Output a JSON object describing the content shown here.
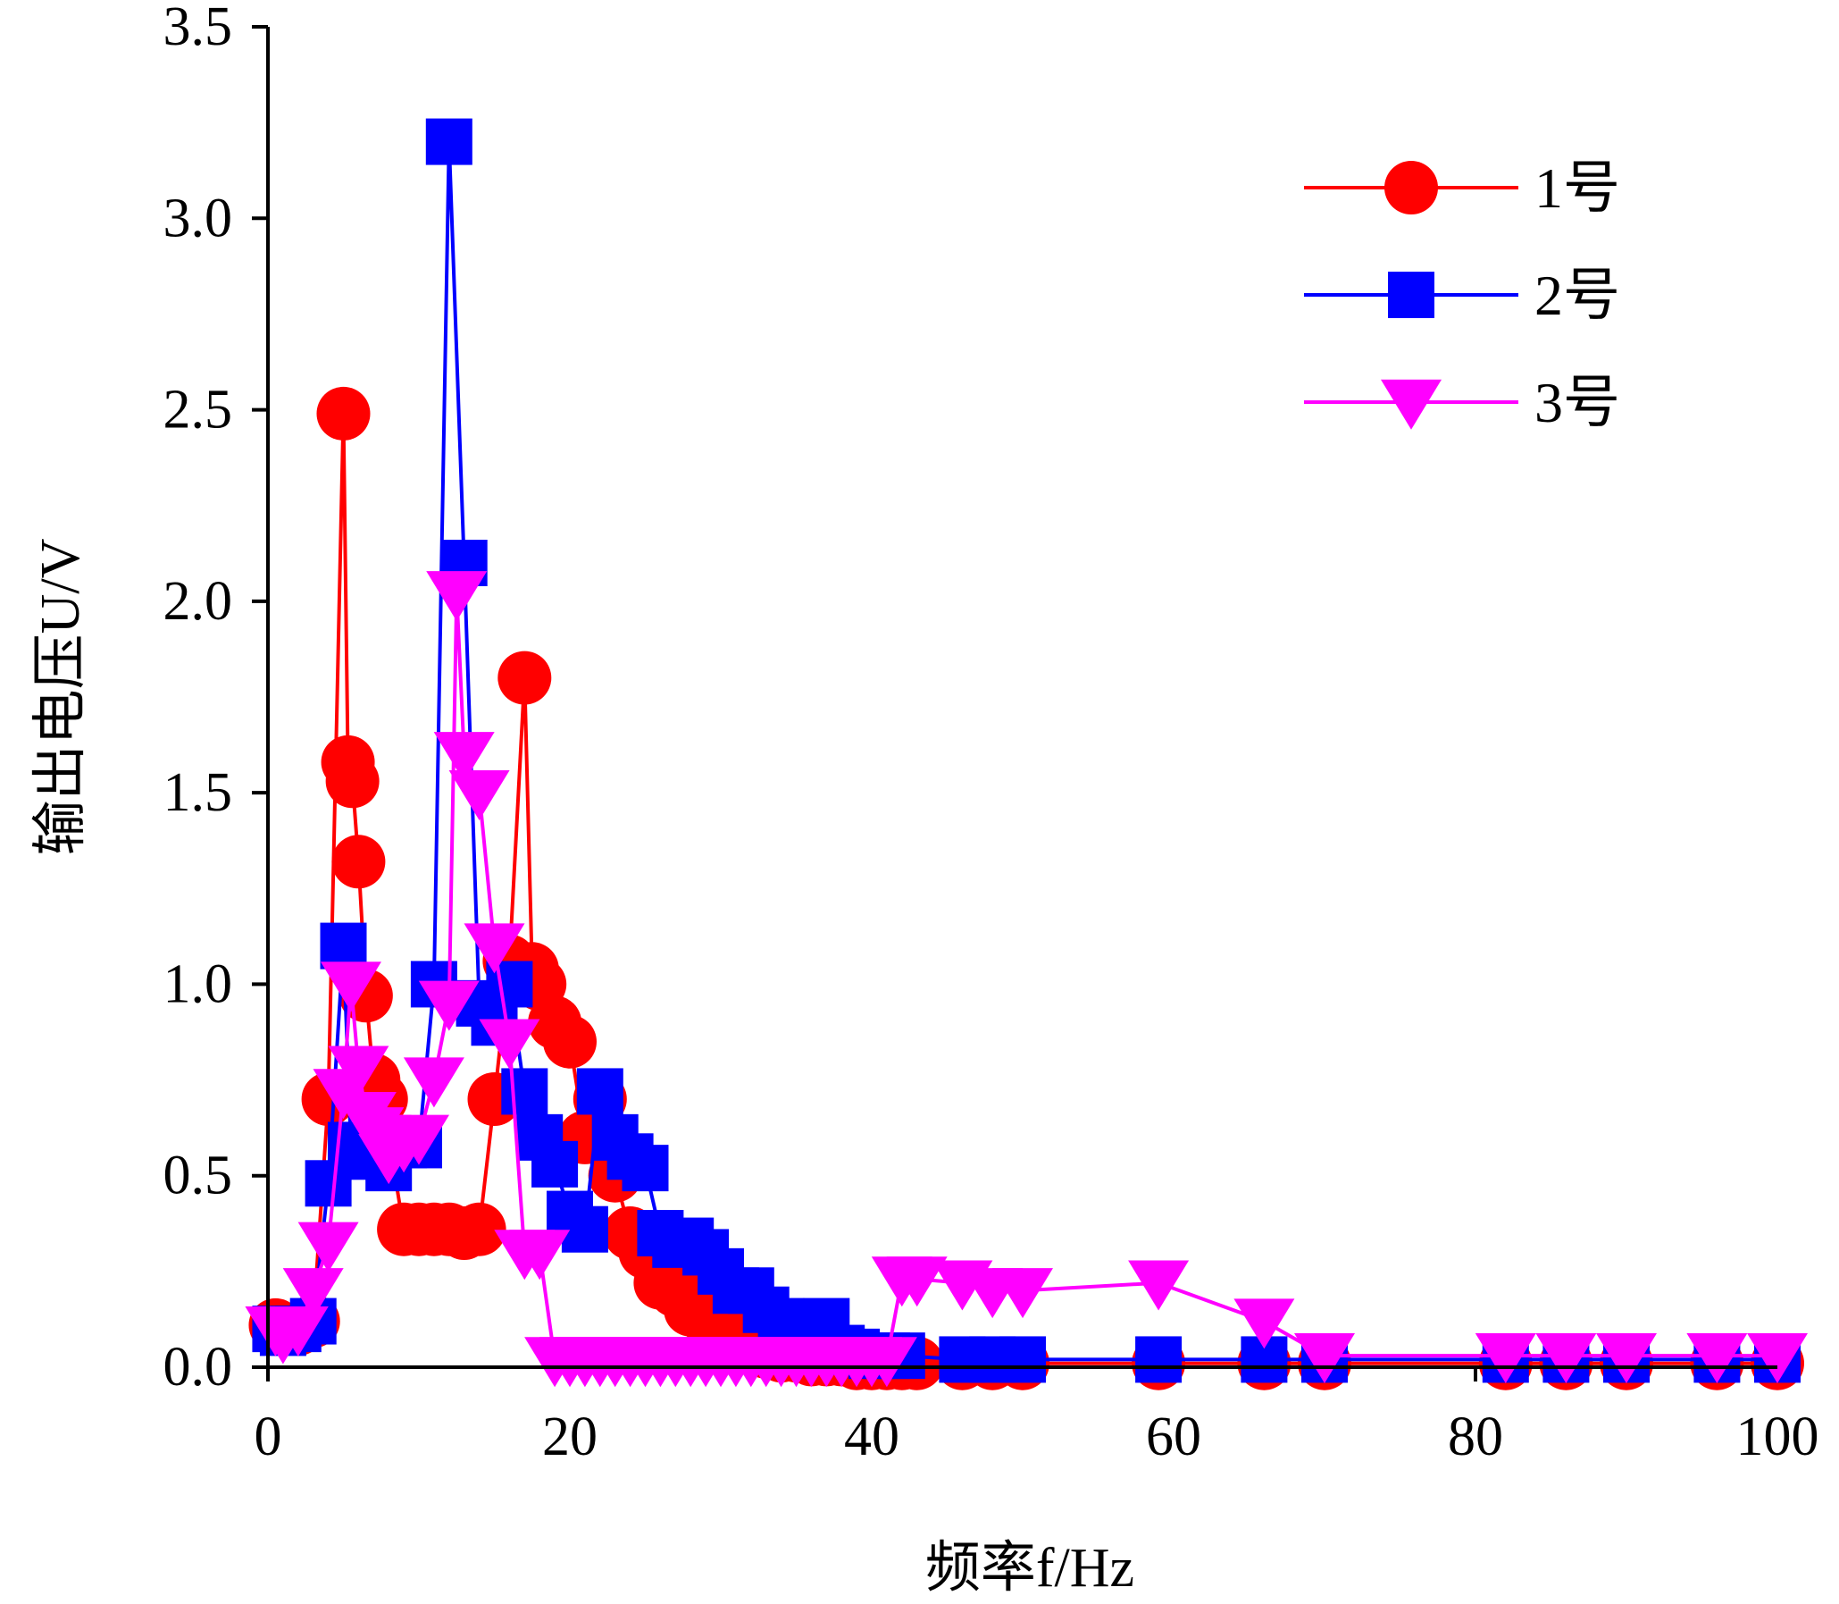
{
  "chart_data": {
    "type": "line",
    "title": "",
    "xlabel": "频率f/Hz",
    "ylabel": "输出电压U/V",
    "xlim": [
      0,
      100
    ],
    "ylim": [
      0,
      3.5
    ],
    "x_ticks": [
      "0",
      "20",
      "40",
      "60",
      "80",
      "100"
    ],
    "y_ticks": [
      "0.0",
      "0.5",
      "1.0",
      "1.5",
      "2.0",
      "2.5",
      "3.0",
      "3.5"
    ],
    "grid": false,
    "legend_position": "top-right",
    "series": [
      {
        "name": "1号",
        "color": "#ff0000",
        "marker": "circle",
        "x": [
          0.5,
          1,
          2,
          3,
          4,
          5,
          5.3,
          5.6,
          6,
          6.5,
          7,
          7.5,
          8,
          9,
          10,
          11,
          12,
          13,
          14,
          15,
          16,
          17,
          17.5,
          18,
          19,
          20,
          21,
          22,
          23,
          24,
          25,
          26,
          27,
          28,
          29,
          30,
          31,
          32,
          33,
          34,
          35,
          36,
          37,
          38,
          39,
          40,
          41,
          42,
          43,
          46,
          48,
          50,
          59,
          66,
          70,
          82,
          86,
          90,
          96,
          100
        ],
        "values": [
          0.11,
          0.1,
          0.1,
          0.12,
          0.7,
          2.49,
          1.58,
          1.53,
          1.32,
          0.97,
          0.75,
          0.7,
          0.6,
          0.36,
          0.36,
          0.36,
          0.36,
          0.35,
          0.36,
          0.7,
          1.06,
          1.8,
          1.04,
          1.0,
          0.9,
          0.85,
          0.6,
          0.7,
          0.5,
          0.35,
          0.3,
          0.22,
          0.2,
          0.15,
          0.13,
          0.12,
          0.08,
          0.05,
          0.04,
          0.03,
          0.03,
          0.02,
          0.02,
          0.02,
          0.01,
          0.01,
          0.01,
          0.01,
          0.01,
          0.01,
          0.01,
          0.01,
          0.01,
          0.01,
          0.01,
          0.01,
          0.01,
          0.01,
          0.01,
          0.01
        ]
      },
      {
        "name": "2号",
        "color": "#0000ff",
        "marker": "square",
        "x": [
          0.5,
          1,
          2,
          3,
          4,
          5,
          5.5,
          6,
          7,
          8,
          9,
          10,
          11,
          12,
          13,
          14,
          15,
          16,
          17,
          18,
          19,
          20,
          21,
          22,
          23,
          24,
          25,
          26,
          27,
          28,
          29,
          30,
          31,
          32,
          33,
          34,
          35,
          36,
          37,
          38,
          39,
          40,
          41,
          42,
          46,
          48,
          50,
          59,
          66,
          70,
          82,
          86,
          90,
          96,
          100
        ],
        "values": [
          0.1,
          0.09,
          0.1,
          0.12,
          0.48,
          1.1,
          0.58,
          0.58,
          0.55,
          0.52,
          0.58,
          0.58,
          1.0,
          3.2,
          2.1,
          0.95,
          0.9,
          1.0,
          0.72,
          0.6,
          0.53,
          0.4,
          0.36,
          0.72,
          0.6,
          0.55,
          0.52,
          0.35,
          0.32,
          0.33,
          0.3,
          0.25,
          0.2,
          0.2,
          0.15,
          0.12,
          0.1,
          0.08,
          0.12,
          0.05,
          0.04,
          0.03,
          0.03,
          0.03,
          0.02,
          0.02,
          0.02,
          0.02,
          0.02,
          0.02,
          0.02,
          0.02,
          0.02,
          0.02,
          0.02
        ]
      },
      {
        "name": "3号",
        "color": "#ff00ff",
        "marker": "triangle-down",
        "x": [
          0.5,
          1,
          2,
          3,
          4,
          5,
          5.5,
          6,
          6.5,
          7,
          7.5,
          8,
          9,
          10,
          11,
          12,
          12.5,
          13,
          14,
          15,
          16,
          17,
          18,
          19,
          20,
          21,
          22,
          23,
          24,
          25,
          26,
          27,
          28,
          29,
          30,
          31,
          32,
          33,
          34,
          35,
          36,
          37,
          38,
          39,
          40,
          41,
          42,
          43,
          46,
          48,
          50,
          59,
          66,
          70,
          82,
          86,
          90,
          96,
          100
        ],
        "values": [
          0.1,
          0.08,
          0.1,
          0.2,
          0.32,
          0.72,
          1.0,
          0.78,
          0.66,
          0.62,
          0.6,
          0.55,
          0.58,
          0.6,
          0.75,
          0.95,
          2.02,
          1.6,
          1.5,
          1.1,
          0.85,
          0.3,
          0.3,
          0.02,
          0.02,
          0.02,
          0.02,
          0.02,
          0.02,
          0.02,
          0.02,
          0.02,
          0.02,
          0.02,
          0.02,
          0.02,
          0.02,
          0.02,
          0.02,
          0.02,
          0.02,
          0.02,
          0.02,
          0.02,
          0.02,
          0.02,
          0.23,
          0.23,
          0.22,
          0.2,
          0.2,
          0.22,
          0.12,
          0.03,
          0.03,
          0.03,
          0.03,
          0.03,
          0.03
        ]
      }
    ]
  }
}
